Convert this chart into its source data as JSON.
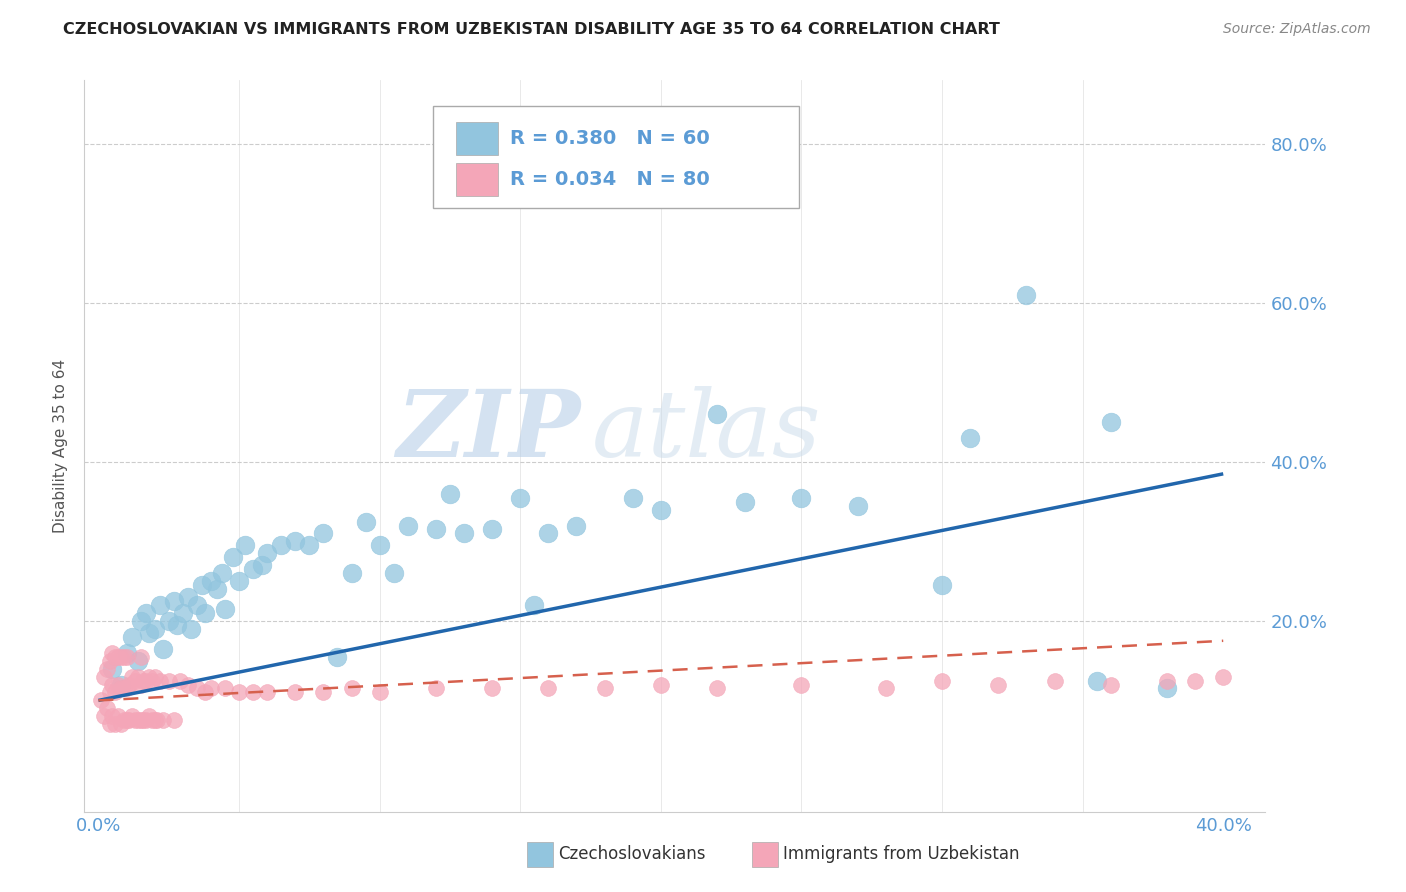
{
  "title": "CZECHOSLOVAKIAN VS IMMIGRANTS FROM UZBEKISTAN DISABILITY AGE 35 TO 64 CORRELATION CHART",
  "source": "Source: ZipAtlas.com",
  "ylabel": "Disability Age 35 to 64",
  "xlim": [
    -0.005,
    0.415
  ],
  "ylim": [
    -0.04,
    0.88
  ],
  "legend_r1": "R = 0.380",
  "legend_n1": "N = 60",
  "legend_r2": "R = 0.034",
  "legend_n2": "N = 80",
  "blue_color": "#92c5de",
  "pink_color": "#f4a6b8",
  "trend_blue": "#2166ac",
  "trend_pink": "#d6604d",
  "axis_color": "#5b9bd5",
  "grid_color": "#cccccc",
  "watermark_zip": "ZIP",
  "watermark_atlas": "atlas",
  "blue_scatter_x": [
    0.005,
    0.008,
    0.01,
    0.012,
    0.014,
    0.015,
    0.017,
    0.018,
    0.02,
    0.022,
    0.023,
    0.025,
    0.027,
    0.028,
    0.03,
    0.032,
    0.033,
    0.035,
    0.037,
    0.038,
    0.04,
    0.042,
    0.044,
    0.045,
    0.048,
    0.05,
    0.052,
    0.055,
    0.058,
    0.06,
    0.065,
    0.07,
    0.075,
    0.08,
    0.085,
    0.09,
    0.095,
    0.1,
    0.105,
    0.11,
    0.12,
    0.125,
    0.13,
    0.14,
    0.15,
    0.155,
    0.16,
    0.17,
    0.19,
    0.2,
    0.22,
    0.23,
    0.25,
    0.27,
    0.3,
    0.31,
    0.33,
    0.355,
    0.36,
    0.38
  ],
  "blue_scatter_y": [
    0.14,
    0.12,
    0.16,
    0.18,
    0.15,
    0.2,
    0.21,
    0.185,
    0.19,
    0.22,
    0.165,
    0.2,
    0.225,
    0.195,
    0.21,
    0.23,
    0.19,
    0.22,
    0.245,
    0.21,
    0.25,
    0.24,
    0.26,
    0.215,
    0.28,
    0.25,
    0.295,
    0.265,
    0.27,
    0.285,
    0.295,
    0.3,
    0.295,
    0.31,
    0.155,
    0.26,
    0.325,
    0.295,
    0.26,
    0.32,
    0.315,
    0.36,
    0.31,
    0.315,
    0.355,
    0.22,
    0.31,
    0.32,
    0.355,
    0.34,
    0.46,
    0.35,
    0.355,
    0.345,
    0.245,
    0.43,
    0.61,
    0.125,
    0.45,
    0.115
  ],
  "pink_scatter_x": [
    0.001,
    0.002,
    0.002,
    0.003,
    0.003,
    0.004,
    0.004,
    0.004,
    0.005,
    0.005,
    0.005,
    0.006,
    0.006,
    0.006,
    0.007,
    0.007,
    0.007,
    0.008,
    0.008,
    0.008,
    0.009,
    0.009,
    0.009,
    0.01,
    0.01,
    0.01,
    0.011,
    0.011,
    0.012,
    0.012,
    0.013,
    0.013,
    0.014,
    0.014,
    0.015,
    0.015,
    0.015,
    0.016,
    0.016,
    0.017,
    0.017,
    0.018,
    0.018,
    0.019,
    0.019,
    0.02,
    0.02,
    0.021,
    0.022,
    0.023,
    0.025,
    0.027,
    0.029,
    0.032,
    0.035,
    0.038,
    0.04,
    0.045,
    0.05,
    0.055,
    0.06,
    0.07,
    0.08,
    0.09,
    0.1,
    0.12,
    0.14,
    0.16,
    0.18,
    0.2,
    0.22,
    0.25,
    0.28,
    0.3,
    0.32,
    0.34,
    0.36,
    0.38,
    0.39,
    0.4
  ],
  "pink_scatter_y": [
    0.1,
    0.08,
    0.13,
    0.09,
    0.14,
    0.07,
    0.11,
    0.15,
    0.08,
    0.12,
    0.16,
    0.07,
    0.11,
    0.155,
    0.08,
    0.12,
    0.155,
    0.07,
    0.115,
    0.155,
    0.075,
    0.115,
    0.155,
    0.075,
    0.115,
    0.155,
    0.075,
    0.12,
    0.08,
    0.13,
    0.075,
    0.125,
    0.075,
    0.13,
    0.075,
    0.12,
    0.155,
    0.075,
    0.125,
    0.075,
    0.125,
    0.08,
    0.13,
    0.075,
    0.125,
    0.075,
    0.13,
    0.075,
    0.125,
    0.075,
    0.125,
    0.075,
    0.125,
    0.12,
    0.115,
    0.11,
    0.115,
    0.115,
    0.11,
    0.11,
    0.11,
    0.11,
    0.11,
    0.115,
    0.11,
    0.115,
    0.115,
    0.115,
    0.115,
    0.12,
    0.115,
    0.12,
    0.115,
    0.125,
    0.12,
    0.125,
    0.12,
    0.125,
    0.125,
    0.13
  ],
  "trend_blue_x_start": 0.0,
  "trend_blue_x_end": 0.4,
  "trend_blue_y_start": 0.1,
  "trend_blue_y_end": 0.385,
  "trend_pink_x_start": 0.0,
  "trend_pink_x_end": 0.4,
  "trend_pink_y_start": 0.1,
  "trend_pink_y_end": 0.175,
  "ytick_positions": [
    0.0,
    0.2,
    0.4,
    0.6,
    0.8
  ],
  "ytick_labels": [
    "",
    "20.0%",
    "40.0%",
    "60.0%",
    "80.0%"
  ],
  "xtick_positions": [
    0.0,
    0.4
  ],
  "xtick_labels": [
    "0.0%",
    "40.0%"
  ]
}
